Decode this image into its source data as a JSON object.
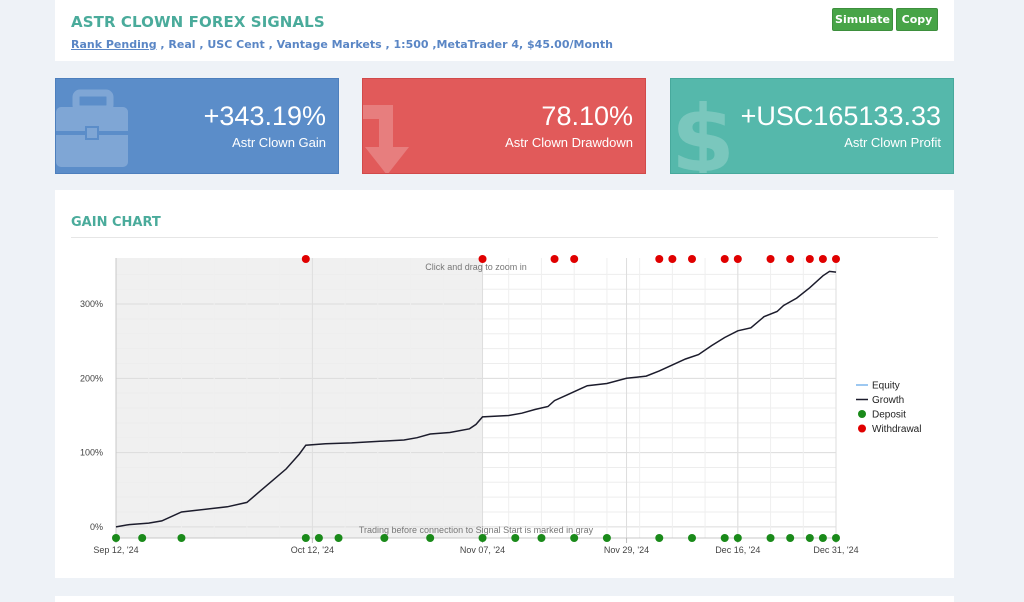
{
  "header": {
    "title": "ASTR CLOWN FOREX SIGNALS",
    "rank": "Rank Pending",
    "details": " , Real , USC Cent , Vantage Markets , 1:500 ,MetaTrader 4, $45.00/Month",
    "simulate_label": "Simulate",
    "copy_label": "Copy"
  },
  "stats": {
    "gain": {
      "value": "+343.19%",
      "label": "Astr Clown Gain",
      "icon": "briefcase-icon",
      "color": "#5b8dc9"
    },
    "drawdown": {
      "value": "78.10%",
      "label": "Astr Clown Drawdown",
      "icon": "down-arrow-icon",
      "color": "#e15a5a"
    },
    "profit": {
      "value": "+USC165133.33",
      "label": "Astr Clown Profit",
      "icon": "dollar-icon",
      "color": "#55b8ab"
    }
  },
  "chart_section": {
    "heading": "GAIN CHART",
    "zoom_hint": "Click and drag to zoom in",
    "gray_note": "Trading before connection to Signal Start is marked in gray"
  },
  "chart_data": {
    "type": "line",
    "x_tick_labels": [
      "Sep 12, '24",
      "Oct 12, '24",
      "Nov 07, '24",
      "Nov 29, '24",
      "Dec 16, '24",
      "Dec 31, '24"
    ],
    "x_tick_dates": [
      "2024-09-12",
      "2024-10-12",
      "2024-11-07",
      "2024-11-29",
      "2024-12-16",
      "2024-12-31"
    ],
    "y_tick_labels": [
      "0%",
      "100%",
      "200%",
      "300%"
    ],
    "y_ticks": [
      0,
      100,
      200,
      300
    ],
    "ylim": [
      -15,
      362
    ],
    "xlim": [
      "2024-09-12",
      "2024-12-31"
    ],
    "gray_region": [
      "2024-09-12",
      "2024-11-07"
    ],
    "legend": {
      "position": "right",
      "entries": [
        {
          "name": "Equity",
          "color": "#7cb5ec",
          "marker": "line"
        },
        {
          "name": "Growth",
          "color": "#1c1c2c",
          "marker": "line"
        },
        {
          "name": "Deposit",
          "color": "#1a8a1a",
          "marker": "dot"
        },
        {
          "name": "Withdrawal",
          "color": "#e00000",
          "marker": "dot"
        }
      ]
    },
    "series": [
      {
        "name": "Growth",
        "color": "#1c1c2c",
        "points": [
          [
            "2024-09-12",
            0
          ],
          [
            "2024-09-14",
            3
          ],
          [
            "2024-09-17",
            5
          ],
          [
            "2024-09-19",
            8
          ],
          [
            "2024-09-22",
            20
          ],
          [
            "2024-09-24",
            22
          ],
          [
            "2024-09-27",
            25
          ],
          [
            "2024-09-29",
            27
          ],
          [
            "2024-10-02",
            33
          ],
          [
            "2024-10-04",
            48
          ],
          [
            "2024-10-06",
            63
          ],
          [
            "2024-10-08",
            78
          ],
          [
            "2024-10-10",
            98
          ],
          [
            "2024-10-11",
            110
          ],
          [
            "2024-10-14",
            112
          ],
          [
            "2024-10-18",
            113
          ],
          [
            "2024-10-22",
            115
          ],
          [
            "2024-10-26",
            117
          ],
          [
            "2024-10-28",
            120
          ],
          [
            "2024-10-30",
            125
          ],
          [
            "2024-11-02",
            127
          ],
          [
            "2024-11-05",
            132
          ],
          [
            "2024-11-06",
            138
          ],
          [
            "2024-11-07",
            148
          ],
          [
            "2024-11-11",
            150
          ],
          [
            "2024-11-13",
            153
          ],
          [
            "2024-11-15",
            158
          ],
          [
            "2024-11-17",
            162
          ],
          [
            "2024-11-18",
            170
          ],
          [
            "2024-11-20",
            178
          ],
          [
            "2024-11-22",
            186
          ],
          [
            "2024-11-23",
            190
          ],
          [
            "2024-11-26",
            193
          ],
          [
            "2024-11-29",
            200
          ],
          [
            "2024-12-02",
            203
          ],
          [
            "2024-12-04",
            210
          ],
          [
            "2024-12-06",
            218
          ],
          [
            "2024-12-08",
            226
          ],
          [
            "2024-12-10",
            232
          ],
          [
            "2024-12-12",
            244
          ],
          [
            "2024-12-14",
            255
          ],
          [
            "2024-12-16",
            264
          ],
          [
            "2024-12-18",
            268
          ],
          [
            "2024-12-20",
            283
          ],
          [
            "2024-12-22",
            290
          ],
          [
            "2024-12-23",
            298
          ],
          [
            "2024-12-25",
            308
          ],
          [
            "2024-12-27",
            322
          ],
          [
            "2024-12-29",
            338
          ],
          [
            "2024-12-30",
            344
          ],
          [
            "2024-12-31",
            343
          ]
        ]
      }
    ],
    "deposits": [
      "2024-09-12",
      "2024-09-16",
      "2024-09-22",
      "2024-10-11",
      "2024-10-13",
      "2024-10-16",
      "2024-10-23",
      "2024-10-30",
      "2024-11-07",
      "2024-11-12",
      "2024-11-16",
      "2024-11-21",
      "2024-11-26",
      "2024-12-04",
      "2024-12-09",
      "2024-12-14",
      "2024-12-16",
      "2024-12-21",
      "2024-12-24",
      "2024-12-27",
      "2024-12-29",
      "2024-12-31"
    ],
    "withdrawals": [
      "2024-10-11",
      "2024-11-07",
      "2024-11-18",
      "2024-11-21",
      "2024-12-04",
      "2024-12-06",
      "2024-12-09",
      "2024-12-14",
      "2024-12-16",
      "2024-12-21",
      "2024-12-24",
      "2024-12-27",
      "2024-12-29",
      "2024-12-31"
    ]
  }
}
